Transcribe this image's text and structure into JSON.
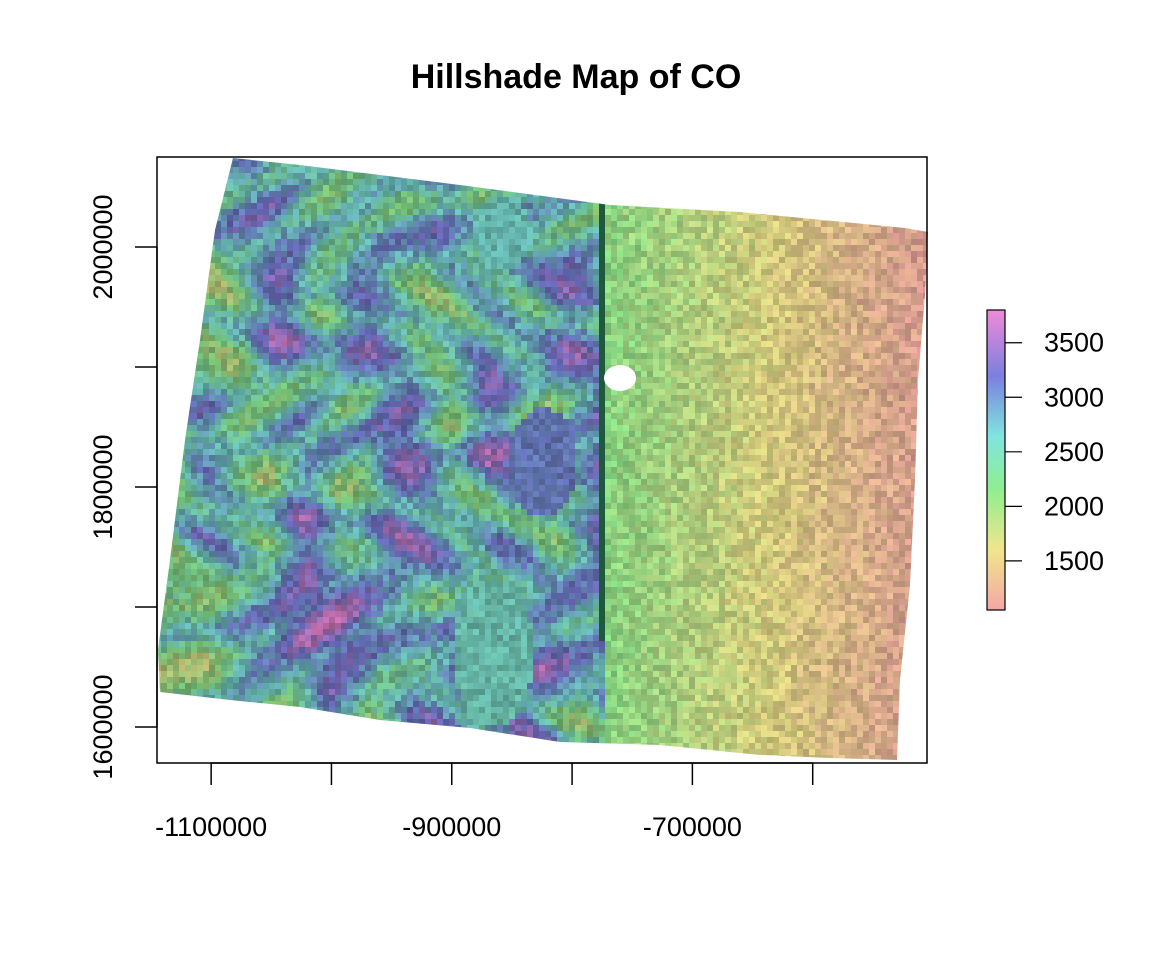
{
  "title": "Hillshade Map of CO",
  "colors": {
    "low": "#f4a6a6",
    "mid1": "#f0e68c",
    "mid2": "#90ee90",
    "mid3": "#7fe5e0",
    "mid4": "#7b7fe0",
    "high": "#f08ad8",
    "dark_ridge": "#1e5a3a",
    "axis": "#000000"
  },
  "x_axis": {
    "ticks": [
      -1100000,
      -1000000,
      -900000,
      -800000,
      -700000,
      -600000
    ],
    "labels": [
      "-1100000",
      "",
      "-900000",
      "",
      "-700000",
      ""
    ],
    "range": [
      -1145000,
      -505000
    ]
  },
  "y_axis": {
    "ticks": [
      1600000,
      1700000,
      1800000,
      1900000,
      2000000
    ],
    "labels": [
      "1600000",
      "",
      "1800000",
      "",
      "2000000"
    ],
    "range": [
      1570000,
      2075000
    ]
  },
  "legend": {
    "ticks": [
      1500,
      2000,
      2500,
      3000,
      3500
    ],
    "labels": [
      "1500",
      "2000",
      "2500",
      "3000",
      "3500"
    ],
    "range": [
      1050,
      3800
    ]
  },
  "chart_data": {
    "type": "heatmap",
    "title": "Hillshade Map of CO",
    "xlabel": "",
    "ylabel": "",
    "xlim": [
      -1145000,
      -505000
    ],
    "ylim": [
      1570000,
      2075000
    ],
    "value_range": [
      1050,
      3800
    ],
    "legend_ticks": [
      1500,
      2000,
      2500,
      3000,
      3500
    ],
    "legend_placement": "right",
    "grid": false
  }
}
